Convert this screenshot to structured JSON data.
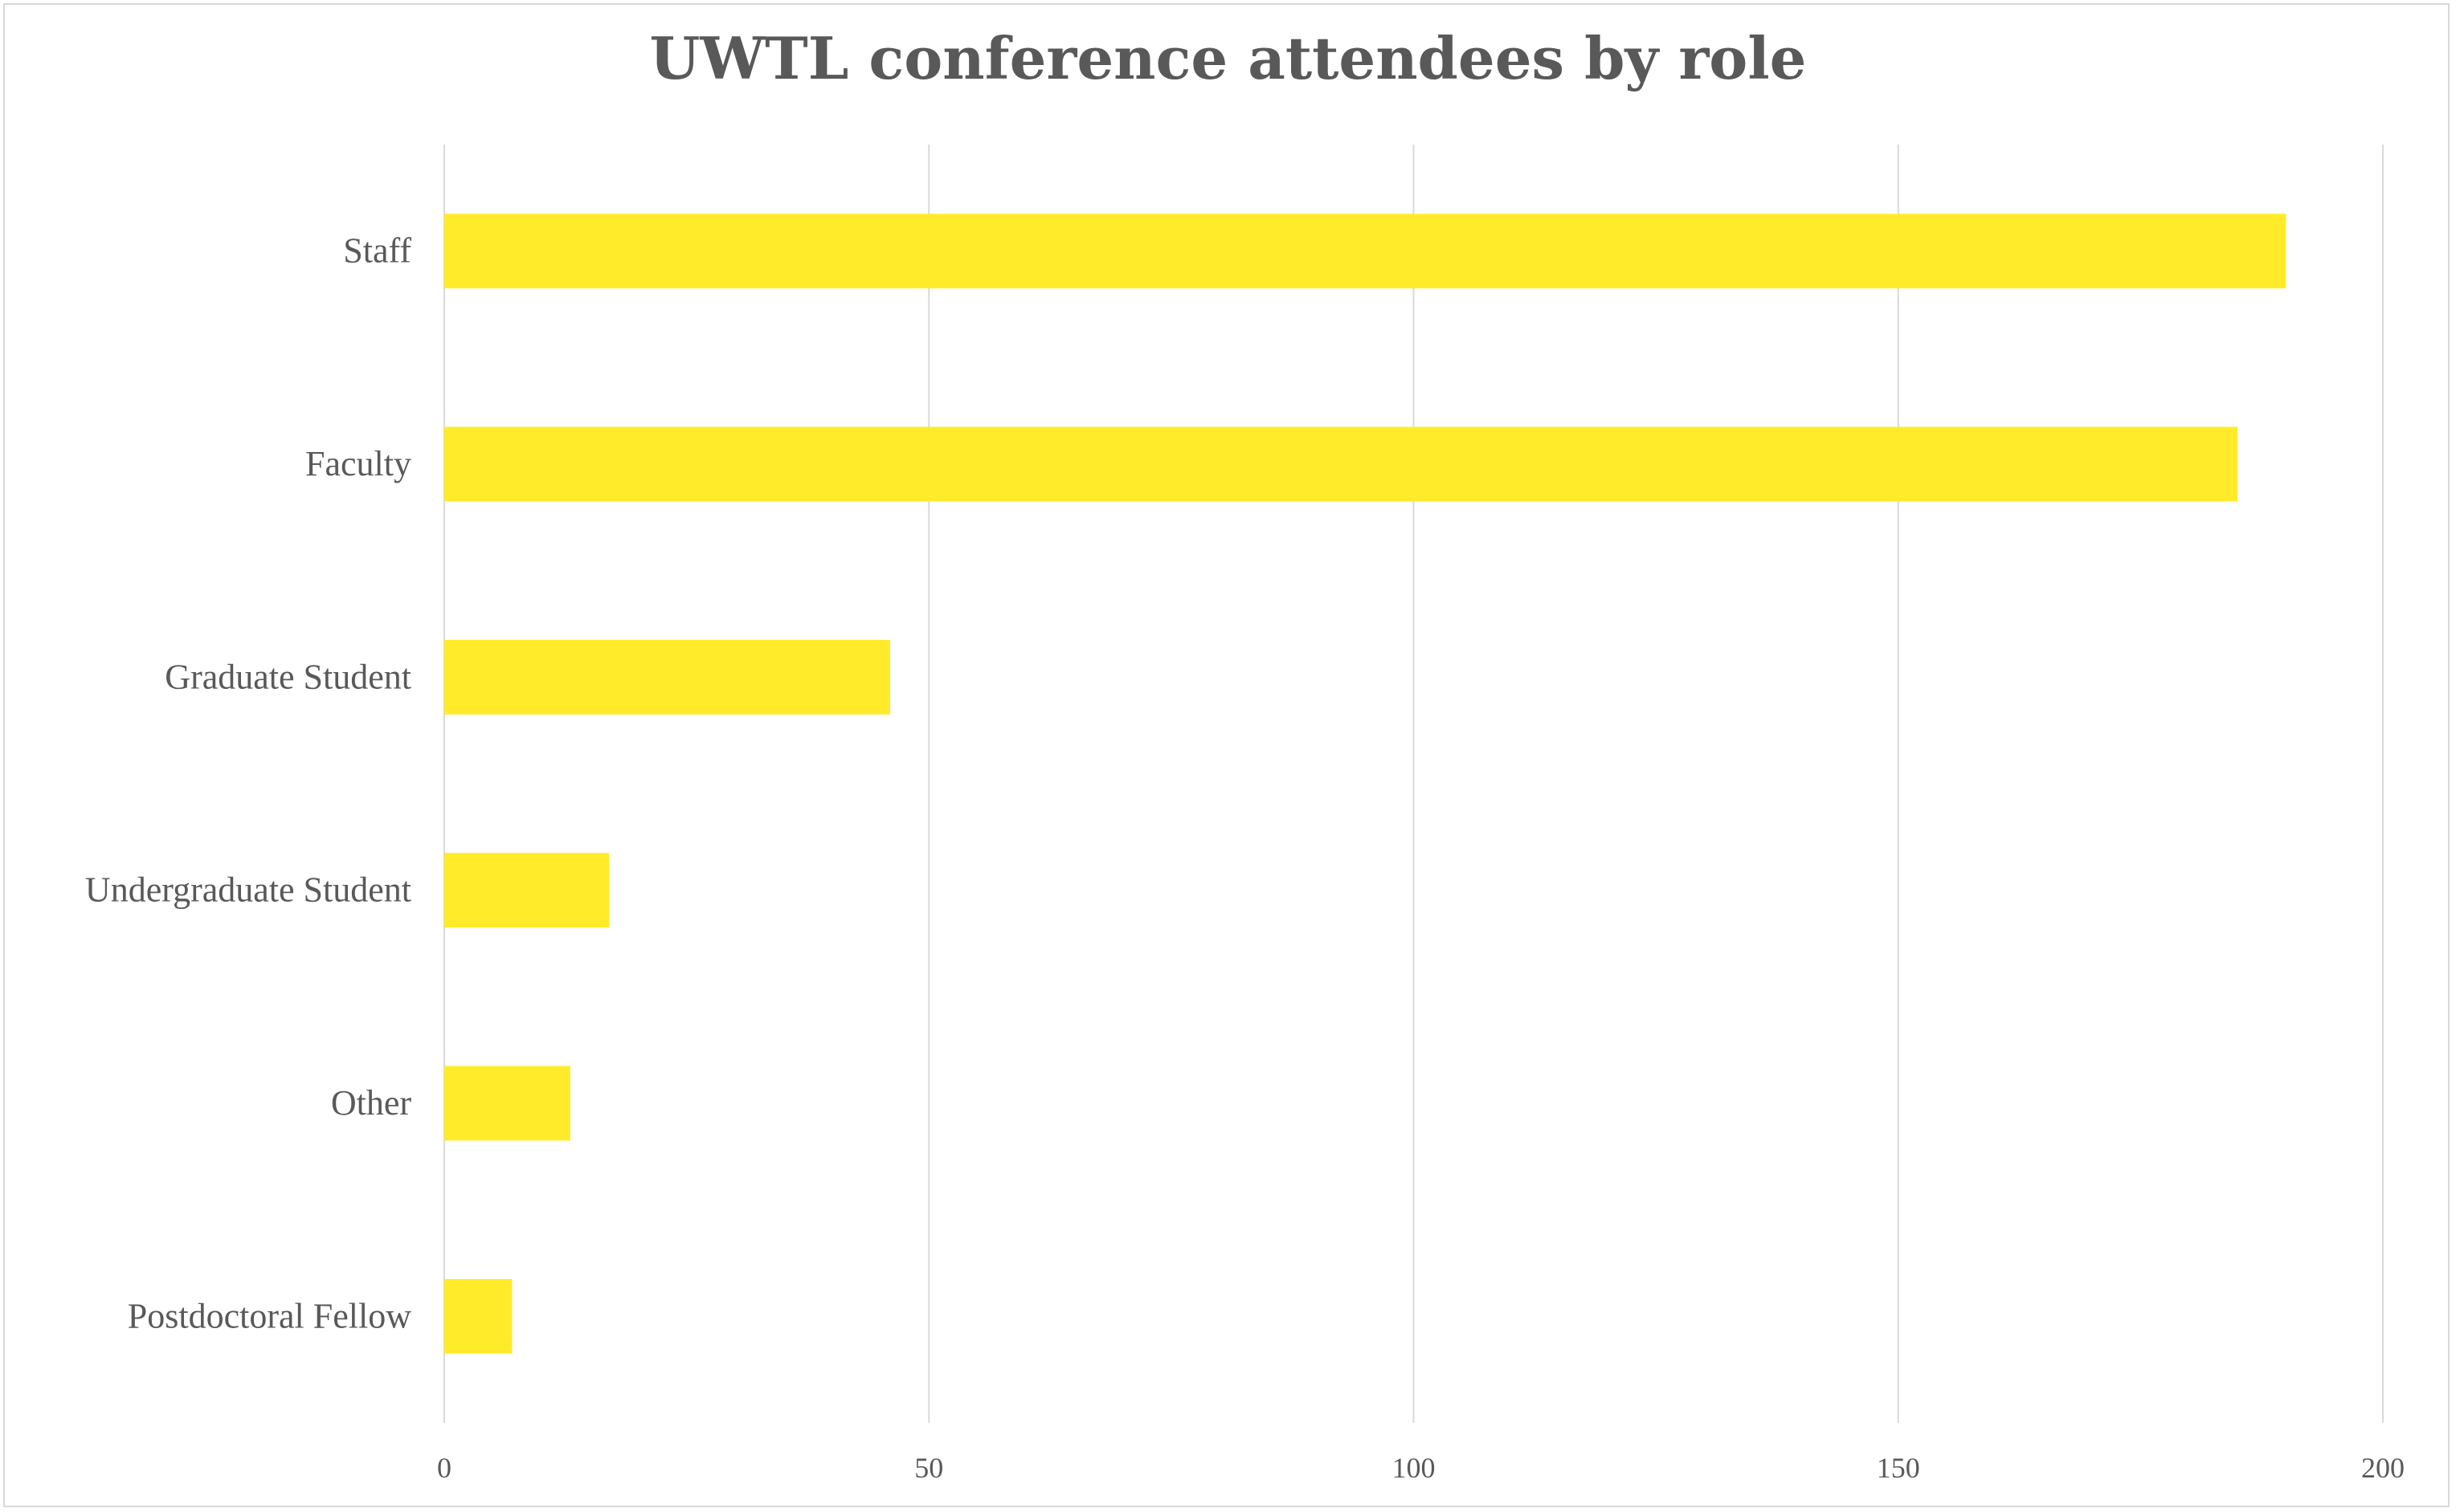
{
  "chart_data": {
    "type": "bar",
    "orientation": "horizontal",
    "title": "UWTL conference attendees by role",
    "xlabel": "",
    "ylabel": "",
    "categories": [
      "Staff",
      "Faculty",
      "Graduate Student",
      "Undergraduate Student",
      "Other",
      "Postdoctoral Fellow"
    ],
    "values": [
      190,
      185,
      46,
      17,
      13,
      7
    ],
    "xlim": [
      0,
      200
    ],
    "xticks": [
      "0",
      "50",
      "100",
      "150",
      "200"
    ],
    "grid": true,
    "legend": "none",
    "bar_color": "#FFEB2A",
    "grid_color": "#D9D9D9",
    "text_color": "#595959"
  }
}
